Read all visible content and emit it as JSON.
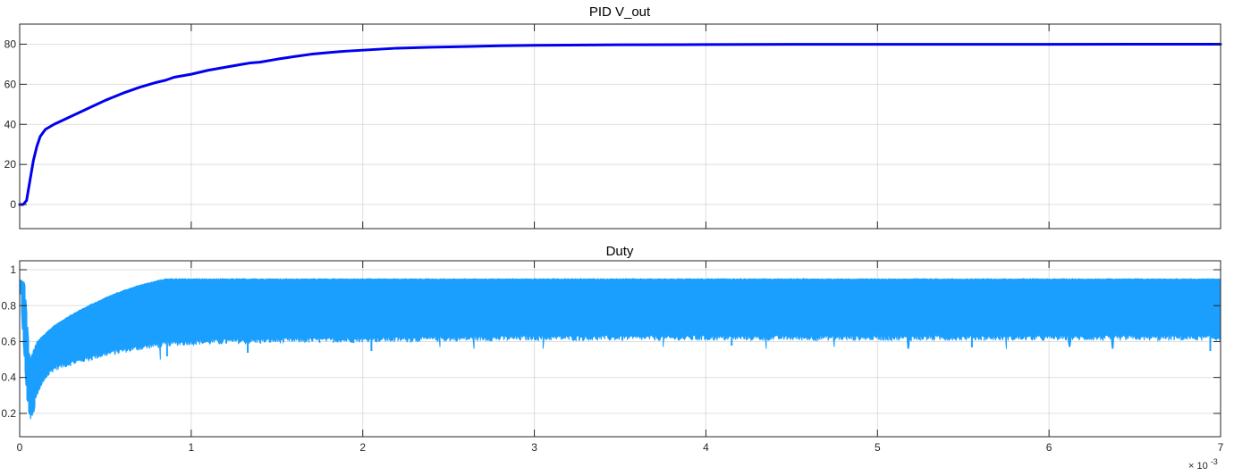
{
  "chart_data": [
    {
      "type": "line",
      "title": "PID V_out",
      "xlabel": "",
      "ylabel": "",
      "xlim": [
        0,
        0.007
      ],
      "ylim": [
        -12,
        90
      ],
      "xticks": [
        0,
        0.001,
        0.002,
        0.003,
        0.004,
        0.005,
        0.006,
        0.007
      ],
      "xtick_labels": [
        "0",
        "1",
        "2",
        "3",
        "4",
        "5",
        "6",
        "7"
      ],
      "xtick_labels_visible": false,
      "yticks": [
        0,
        20,
        40,
        60,
        80
      ],
      "ytick_labels": [
        "0",
        "20",
        "40",
        "60",
        "80"
      ],
      "grid": true,
      "color": "#0000ee",
      "series": [
        {
          "x": [
            0,
            2e-05,
            4e-05,
            6e-05,
            8e-05,
            0.0001,
            0.00012,
            0.00015,
            0.0002,
            0.00025,
            0.0003,
            0.0004,
            0.0005,
            0.0006,
            0.0007,
            0.0008,
            0.00085,
            0.0009,
            0.001,
            0.0011,
            0.0012,
            0.0013,
            0.00135,
            0.0014,
            0.0015,
            0.0016,
            0.0017,
            0.0018,
            0.0019,
            0.002,
            0.0021,
            0.0022,
            0.0024,
            0.0026,
            0.0028,
            0.003,
            0.0035,
            0.004,
            0.0045,
            0.005,
            0.0055,
            0.006,
            0.0065,
            0.007
          ],
          "y": [
            0,
            0,
            2,
            12,
            22,
            29,
            34,
            37.5,
            40,
            42,
            44,
            48,
            52,
            55.5,
            58.5,
            61,
            62,
            63.5,
            65,
            67,
            68.5,
            70,
            70.7,
            71,
            72.5,
            73.8,
            75,
            75.8,
            76.5,
            77,
            77.5,
            78,
            78.5,
            78.8,
            79.2,
            79.4,
            79.7,
            79.8,
            79.9,
            79.9,
            79.9,
            79.9,
            80,
            80
          ]
        }
      ]
    },
    {
      "type": "line",
      "title": "Duty",
      "xlabel": "",
      "ylabel": "",
      "xlim": [
        0,
        0.007
      ],
      "ylim": [
        0.07,
        1.05
      ],
      "xticks": [
        0,
        0.001,
        0.002,
        0.003,
        0.004,
        0.005,
        0.006,
        0.007
      ],
      "xtick_labels": [
        "0",
        "1",
        "2",
        "3",
        "4",
        "5",
        "6",
        "7"
      ],
      "x_exponent": "× 10",
      "x_exponent_power": "-3",
      "yticks": [
        0.2,
        0.4,
        0.6,
        0.8,
        1
      ],
      "ytick_labels": [
        "0.2",
        "0.4",
        "0.6",
        "0.8",
        "1"
      ],
      "grid": true,
      "color": "#1a9fff",
      "description_of_signal": "high-frequency switching between lower and upper envelopes",
      "upper_envelope": {
        "x": [
          0,
          3e-05,
          6e-05,
          0.0001,
          0.0002,
          0.0003,
          0.0004,
          0.0005,
          0.0006,
          0.0007,
          0.0008,
          0.00085,
          0.007
        ],
        "y": [
          0.95,
          0.93,
          0.5,
          0.6,
          0.69,
          0.75,
          0.8,
          0.845,
          0.885,
          0.915,
          0.94,
          0.95,
          0.95
        ]
      },
      "lower_envelope": {
        "x": [
          0,
          2e-05,
          4e-05,
          6e-05,
          8e-05,
          0.0001,
          0.00015,
          0.0002,
          0.0003,
          0.0004,
          0.0005,
          0.0006,
          0.0007,
          0.0008,
          0.0009,
          0.001,
          0.0012,
          0.0015,
          0.002,
          0.0025,
          0.003,
          0.007
        ],
        "y": [
          0.95,
          0.6,
          0.3,
          0.17,
          0.2,
          0.3,
          0.4,
          0.45,
          0.48,
          0.505,
          0.53,
          0.55,
          0.565,
          0.58,
          0.59,
          0.595,
          0.6,
          0.605,
          0.61,
          0.615,
          0.62,
          0.62
        ]
      },
      "dips": [
        {
          "x": 0.00082,
          "y": 0.5
        },
        {
          "x": 0.00086,
          "y": 0.52
        },
        {
          "x": 0.00133,
          "y": 0.54
        },
        {
          "x": 0.00205,
          "y": 0.55
        },
        {
          "x": 0.00245,
          "y": 0.57
        },
        {
          "x": 0.00265,
          "y": 0.56
        },
        {
          "x": 0.00305,
          "y": 0.56
        },
        {
          "x": 0.00375,
          "y": 0.57
        },
        {
          "x": 0.00415,
          "y": 0.58
        },
        {
          "x": 0.00435,
          "y": 0.56
        },
        {
          "x": 0.00475,
          "y": 0.57
        },
        {
          "x": 0.00518,
          "y": 0.56
        },
        {
          "x": 0.00555,
          "y": 0.57
        },
        {
          "x": 0.00575,
          "y": 0.56
        },
        {
          "x": 0.00612,
          "y": 0.57
        },
        {
          "x": 0.00637,
          "y": 0.56
        },
        {
          "x": 0.00694,
          "y": 0.55
        }
      ]
    }
  ]
}
